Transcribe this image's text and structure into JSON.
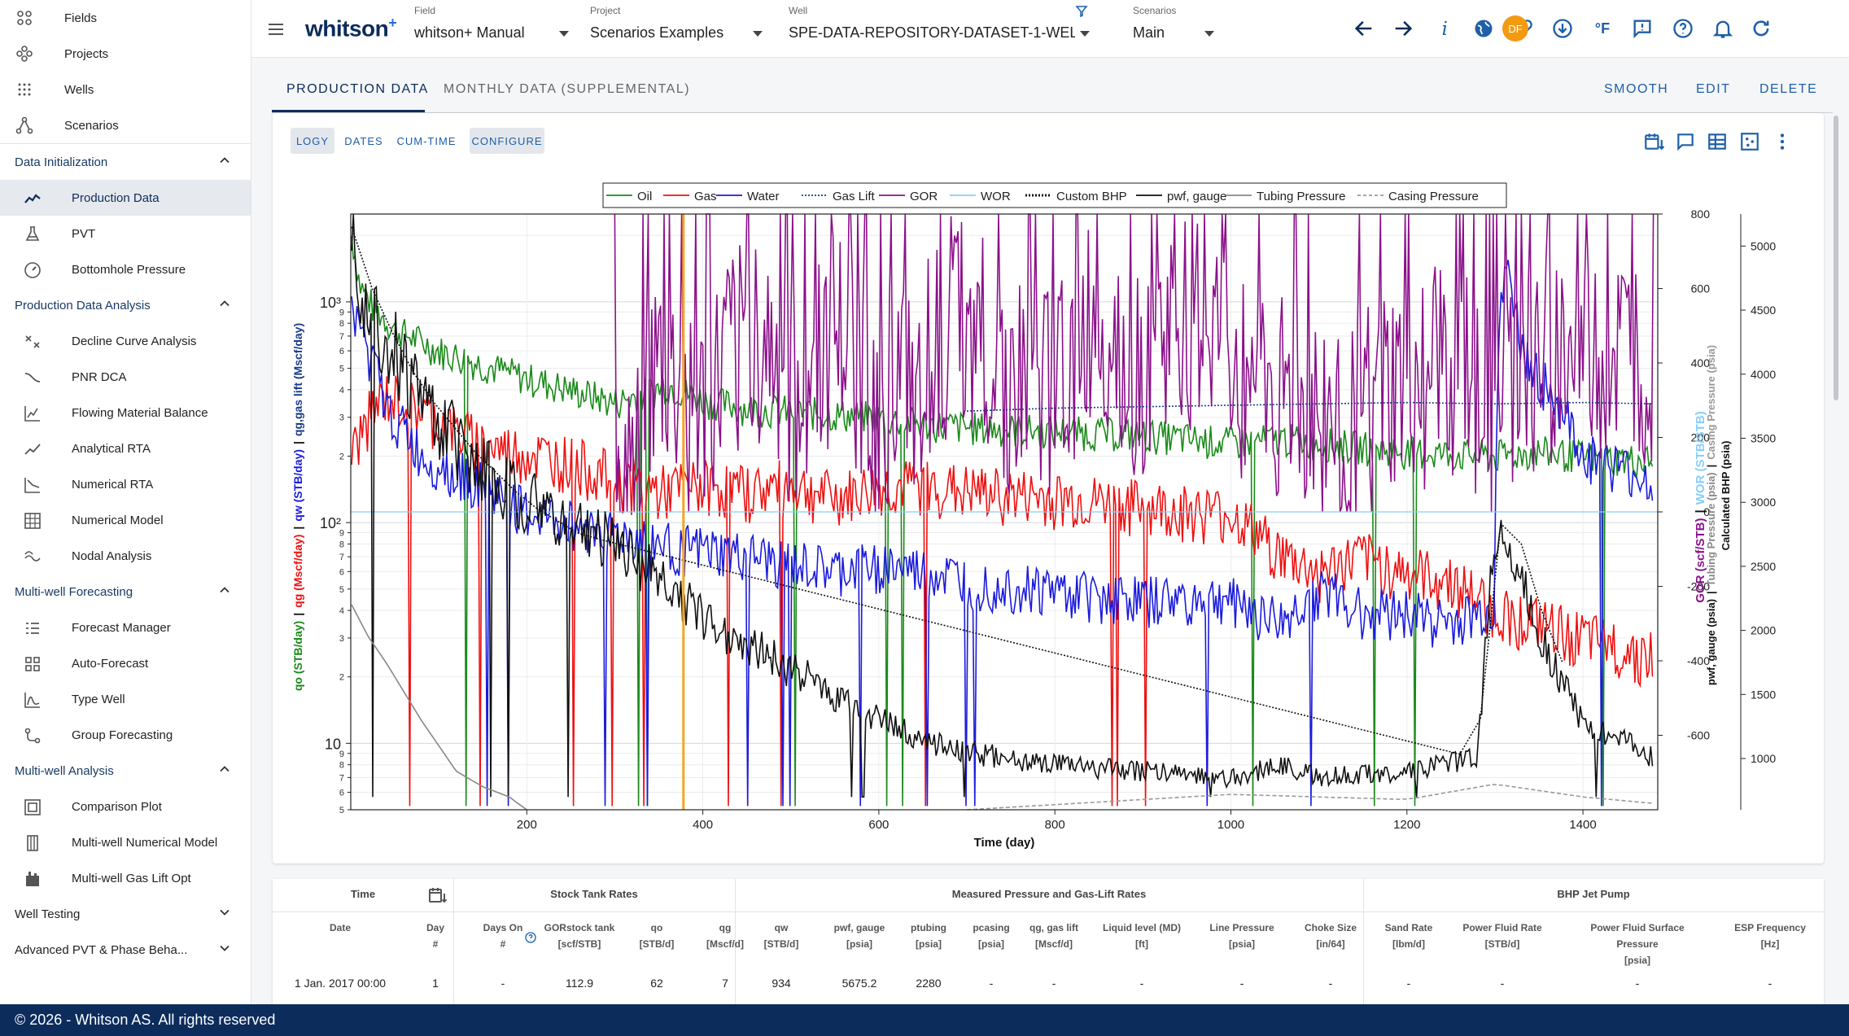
{
  "sidebar": {
    "top_items": [
      {
        "label": "Fields",
        "icon": "fields-icon"
      },
      {
        "label": "Projects",
        "icon": "projects-icon"
      },
      {
        "label": "Wells",
        "icon": "wells-icon"
      },
      {
        "label": "Scenarios",
        "icon": "scenarios-icon"
      }
    ],
    "sections": [
      {
        "title": "Data Initialization",
        "expanded": true,
        "items": [
          {
            "label": "Production Data",
            "icon": "production-data-icon",
            "active": true
          },
          {
            "label": "PVT",
            "icon": "flask-icon"
          },
          {
            "label": "Bottomhole Pressure",
            "icon": "gauge-icon"
          }
        ]
      },
      {
        "title": "Production Data Analysis",
        "expanded": true,
        "items": [
          {
            "label": "Decline Curve Analysis",
            "icon": "decline-curve-icon"
          },
          {
            "label": "PNR DCA",
            "icon": "pnr-dca-icon"
          },
          {
            "label": "Flowing Material Balance",
            "icon": "material-balance-icon"
          },
          {
            "label": "Analytical RTA",
            "icon": "analytical-rta-icon"
          },
          {
            "label": "Numerical RTA",
            "icon": "numerical-rta-icon"
          },
          {
            "label": "Numerical Model",
            "icon": "numerical-model-icon"
          },
          {
            "label": "Nodal Analysis",
            "icon": "nodal-analysis-icon"
          }
        ]
      },
      {
        "title": "Multi-well Forecasting",
        "expanded": true,
        "items": [
          {
            "label": "Forecast Manager",
            "icon": "forecast-manager-icon"
          },
          {
            "label": "Auto-Forecast",
            "icon": "grid-icon"
          },
          {
            "label": "Type Well",
            "icon": "type-well-icon"
          },
          {
            "label": "Group Forecasting",
            "icon": "group-forecasting-icon"
          }
        ]
      },
      {
        "title": "Multi-well Analysis",
        "expanded": true,
        "items": [
          {
            "label": "Comparison Plot",
            "icon": "comparison-plot-icon"
          },
          {
            "label": "Multi-well Numerical Model",
            "icon": "multiwell-model-icon"
          },
          {
            "label": "Multi-well Gas Lift Opt",
            "icon": "gas-lift-icon"
          }
        ]
      },
      {
        "title": "Well Testing",
        "expanded": false,
        "items": []
      },
      {
        "title": "Advanced PVT & Phase Beha...",
        "expanded": false,
        "items": []
      }
    ]
  },
  "footer": {
    "text": "© 2026 - Whitson AS. All rights reserved"
  },
  "topbar": {
    "brand": "whitson",
    "brand_sup": "+",
    "selectors": [
      {
        "caption": "Field",
        "value": "whitson+ Manual"
      },
      {
        "caption": "Project",
        "value": "Scenarios Examples"
      },
      {
        "caption": "Well",
        "value": "SPE-DATA-REPOSITORY-DATASET-1-WELL-3-"
      },
      {
        "caption": "Scenarios",
        "value": "Main"
      }
    ],
    "icons": [
      "arrow-left-icon",
      "arrow-right-icon",
      "info-icon",
      "globe-icon",
      "link-icon",
      "download-icon",
      "fahrenheit-icon",
      "feedback-icon",
      "help-icon",
      "bell-icon",
      "refresh-icon"
    ],
    "unit_label": "°F",
    "avatar": "DF"
  },
  "tabs": {
    "items": [
      "PRODUCTION DATA",
      "MONTHLY DATA (SUPPLEMENTAL)"
    ],
    "actions": [
      "SMOOTH",
      "EDIT",
      "DELETE"
    ]
  },
  "chart_controls": {
    "chips": [
      "LOGY",
      "DATES",
      "CUM-TIME",
      "CONFIGURE"
    ]
  },
  "chart_data": {
    "type": "line",
    "xlabel": "Time (day)",
    "xlim": [
      0,
      1485
    ],
    "x_ticks": [
      200,
      400,
      600,
      800,
      1000,
      1200,
      1400
    ],
    "left_axis": {
      "scale": "log",
      "ylim": [
        5,
        2500
      ],
      "major_labels": [
        "10",
        "10²",
        "10³"
      ],
      "minor_labels": [
        "5",
        "6",
        "7",
        "8",
        "9",
        "2",
        "3",
        "4",
        "5",
        "6",
        "7",
        "8",
        "9",
        "2",
        "3",
        "4",
        "5",
        "6",
        "7",
        "8",
        "9"
      ]
    },
    "gor_axis": {
      "ylim": [
        -800,
        800
      ],
      "ticks": [
        800,
        600,
        400,
        200,
        0,
        -200,
        -400,
        -600
      ]
    },
    "bhp_axis": {
      "ylim": [
        600,
        5250
      ],
      "ticks": [
        5000,
        4500,
        4000,
        3500,
        3000,
        2500,
        2000,
        1500,
        1000
      ]
    },
    "legend_position": "top",
    "grid": true,
    "legend": [
      {
        "name": "Oil",
        "color": "#1b8a1b",
        "style": "solid"
      },
      {
        "name": "Gas",
        "color": "#ee1111",
        "style": "solid"
      },
      {
        "name": "Water",
        "color": "#1b1bdd",
        "style": "solid"
      },
      {
        "name": "Gas Lift",
        "color": "#1a3a8a",
        "style": "dotted"
      },
      {
        "name": "GOR",
        "color": "#8b118b",
        "style": "solid"
      },
      {
        "name": "WOR",
        "color": "#87cefa",
        "style": "solid"
      },
      {
        "name": "Custom BHP",
        "color": "#111111",
        "style": "dotted"
      },
      {
        "name": "pwf, gauge",
        "color": "#111111",
        "style": "solid"
      },
      {
        "name": "Tubing Pressure",
        "color": "#888888",
        "style": "solid"
      },
      {
        "name": "Casing Pressure",
        "color": "#999999",
        "style": "dashed"
      }
    ],
    "marker_line": {
      "x": 378,
      "color": "#f5a623"
    },
    "series": [
      {
        "name": "Oil",
        "axis": "left",
        "x": [
          1,
          10,
          25,
          50,
          100,
          150,
          200,
          250,
          300,
          330,
          360,
          400,
          450,
          500,
          550,
          600,
          650,
          700,
          800,
          900,
          1000,
          1060,
          1100,
          1150,
          1200,
          1250,
          1300,
          1350,
          1400,
          1480
        ],
        "y": [
          2000,
          1200,
          950,
          750,
          600,
          520,
          450,
          400,
          350,
          380,
          420,
          360,
          330,
          320,
          310,
          300,
          280,
          270,
          260,
          250,
          230,
          240,
          230,
          220,
          210,
          205,
          200,
          210,
          200,
          190
        ]
      },
      {
        "name": "Gas",
        "axis": "left",
        "x": [
          1,
          20,
          40,
          80,
          120,
          160,
          200,
          250,
          300,
          350,
          400,
          450,
          500,
          550,
          600,
          650,
          700,
          800,
          900,
          1000,
          1060,
          1100,
          1150,
          1200,
          1250,
          1300,
          1350,
          1400,
          1480
        ],
        "y": [
          200,
          300,
          380,
          330,
          260,
          220,
          210,
          190,
          160,
          140,
          150,
          140,
          150,
          130,
          145,
          150,
          140,
          130,
          120,
          110,
          70,
          60,
          70,
          60,
          55,
          40,
          35,
          30,
          25
        ]
      },
      {
        "name": "Water",
        "axis": "left",
        "x": [
          1,
          20,
          40,
          80,
          120,
          160,
          200,
          250,
          300,
          350,
          400,
          450,
          500,
          550,
          600,
          650,
          700,
          800,
          900,
          1000,
          1060,
          1100,
          1150,
          1200,
          1250,
          1300,
          1310,
          1330,
          1360,
          1400,
          1480
        ],
        "y": [
          900,
          600,
          330,
          200,
          170,
          140,
          110,
          100,
          90,
          80,
          75,
          70,
          65,
          60,
          65,
          60,
          55,
          50,
          45,
          45,
          35,
          50,
          40,
          40,
          35,
          40,
          1500,
          600,
          400,
          200,
          150
        ]
      },
      {
        "name": "GOR",
        "axis": "gor",
        "x": [
          300,
          350,
          400,
          450,
          500,
          550,
          600,
          650,
          700,
          750,
          800,
          850,
          900,
          950,
          1000,
          1050,
          1100,
          1150,
          1200,
          1250,
          1300,
          1350,
          1400,
          1480
        ],
        "y": [
          0,
          350,
          200,
          500,
          300,
          450,
          250,
          400,
          550,
          300,
          350,
          500,
          350,
          500,
          400,
          300,
          200,
          250,
          300,
          400,
          250,
          400,
          350,
          400
        ]
      },
      {
        "name": "WOR",
        "axis": "gor",
        "x": [
          0,
          1485
        ],
        "y": [
          0,
          0
        ]
      },
      {
        "name": "Gas Lift",
        "axis": "left",
        "x": [
          700,
          800,
          900,
          1000,
          1100,
          1200,
          1300,
          1400,
          1480
        ],
        "y": [
          320,
          330,
          335,
          340,
          345,
          350,
          345,
          350,
          345
        ]
      },
      {
        "name": "pwf, gauge",
        "axis": "bhp",
        "x": [
          1,
          15,
          30,
          60,
          100,
          140,
          200,
          250,
          300,
          350,
          400,
          450,
          500,
          550,
          600,
          650,
          700,
          800,
          900,
          1000,
          1060,
          1100,
          1200,
          1280,
          1300,
          1320,
          1360,
          1400,
          1480
        ],
        "y": [
          5200,
          4600,
          4400,
          4000,
          3600,
          3300,
          3000,
          2800,
          2700,
          2400,
          2100,
          1900,
          1700,
          1500,
          1300,
          1150,
          1050,
          950,
          900,
          850,
          950,
          850,
          900,
          1000,
          2800,
          2600,
          1800,
          1300,
          1000
        ]
      },
      {
        "name": "Custom BHP",
        "axis": "bhp",
        "x": [
          1,
          30,
          80,
          140,
          200,
          260,
          1280,
          1300,
          1320,
          1360,
          1400
        ],
        "y": [
          5150,
          4550,
          3900,
          3400,
          3000,
          2750,
          1000,
          2800,
          2900,
          2000,
          1400
        ]
      },
      {
        "name": "Tubing Pressure",
        "axis": "bhp",
        "x": [
          1,
          20,
          40,
          80,
          120,
          150,
          180,
          200
        ],
        "y": [
          2200,
          1950,
          1750,
          1300,
          900,
          780,
          700,
          600
        ]
      },
      {
        "name": "Casing Pressure",
        "axis": "bhp",
        "x": [
          700,
          800,
          900,
          1000,
          1100,
          1200,
          1300,
          1350,
          1400,
          1480
        ],
        "y": [
          600,
          640,
          680,
          720,
          700,
          680,
          800,
          750,
          700,
          650
        ]
      }
    ]
  },
  "axis_titles": {
    "left": [
      "qo (STB/day)",
      "|",
      "qg (Mscf/day)",
      "|",
      "qw (STB/day)",
      "|",
      "qg,gas lift (Mscf/day)"
    ],
    "gor": [
      "GOR (scf/STB)",
      "|",
      "WOR (STB/STB)"
    ],
    "bhp": [
      "pwf, gauge (psia)",
      "|",
      "Tubing Pressure (psia)",
      "|",
      "Casing Pressure (psia)",
      "Calculated BHP (psia)"
    ]
  },
  "table": {
    "group_headers": [
      "Time",
      "Stock Tank Rates",
      "Measured Pressure and Gas-Lift Rates",
      "BHP Jet Pump"
    ],
    "columns": [
      {
        "l1": "Date",
        "l2": ""
      },
      {
        "l1": "Day",
        "l2": "#"
      },
      {
        "l1": "Days On",
        "l2": "#"
      },
      {
        "l1": "GORstock tank",
        "l2": "[scf/STB]"
      },
      {
        "l1": "qo",
        "l2": "[STB/d]"
      },
      {
        "l1": "qg",
        "l2": "[Mscf/d]"
      },
      {
        "l1": "qw",
        "l2": "[STB/d]"
      },
      {
        "l1": "pwf, gauge",
        "l2": "[psia]"
      },
      {
        "l1": "ptubing",
        "l2": "[psia]"
      },
      {
        "l1": "pcasing",
        "l2": "[psia]"
      },
      {
        "l1": "qg, gas lift",
        "l2": "[Mscf/d]"
      },
      {
        "l1": "Liquid level (MD)",
        "l2": "[ft]"
      },
      {
        "l1": "Line Pressure",
        "l2": "[psia]"
      },
      {
        "l1": "Choke Size",
        "l2": "[in/64]"
      },
      {
        "l1": "Sand Rate",
        "l2": "[lbm/d]"
      },
      {
        "l1": "Power Fluid Rate",
        "l2": "[STB/d]"
      },
      {
        "l1": "Power Fluid Surface Pressure",
        "l2": "[psia]"
      },
      {
        "l1": "ESP Frequency",
        "l2": "[Hz]"
      }
    ],
    "rows": [
      [
        "1 Jan. 2017 00:00",
        "1",
        "-",
        "112.9",
        "62",
        "7",
        "934",
        "5675.2",
        "2280",
        "-",
        "-",
        "-",
        "-",
        "-",
        "-",
        "-",
        "-",
        "-"
      ]
    ]
  }
}
